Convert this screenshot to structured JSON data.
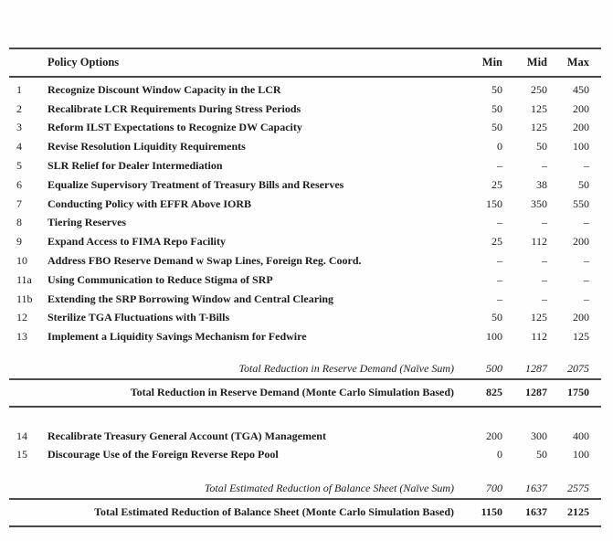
{
  "table": {
    "header": {
      "policy": "Policy Options",
      "min": "Min",
      "mid": "Mid",
      "max": "Max"
    },
    "rows": [
      {
        "id": "1",
        "policy": "Recognize Discount Window Capacity in the LCR",
        "min": "50",
        "mid": "250",
        "max": "450"
      },
      {
        "id": "2",
        "policy": "Recalibrate LCR Requirements During Stress Periods",
        "min": "50",
        "mid": "125",
        "max": "200"
      },
      {
        "id": "3",
        "policy": "Reform ILST Expectations to Recognize DW Capacity",
        "min": "50",
        "mid": "125",
        "max": "200"
      },
      {
        "id": "4",
        "policy": "Revise Resolution Liquidity Requirements",
        "min": "0",
        "mid": "50",
        "max": "100"
      },
      {
        "id": "5",
        "policy": "SLR Relief for Dealer Intermediation",
        "min": "–",
        "mid": "–",
        "max": "–"
      },
      {
        "id": "6",
        "policy": "Equalize Supervisory Treatment of Treasury Bills and Reserves",
        "min": "25",
        "mid": "38",
        "max": "50"
      },
      {
        "id": "7",
        "policy": "Conducting Policy with EFFR Above IORB",
        "min": "150",
        "mid": "350",
        "max": "550"
      },
      {
        "id": "8",
        "policy": "Tiering Reserves",
        "min": "–",
        "mid": "–",
        "max": "–"
      },
      {
        "id": "9",
        "policy": "Expand Access to FIMA Repo Facility",
        "min": "25",
        "mid": "112",
        "max": "200"
      },
      {
        "id": "10",
        "policy": "Address FBO Reserve Demand w Swap Lines, Foreign Reg. Coord.",
        "min": "–",
        "mid": "–",
        "max": "–"
      },
      {
        "id": "11a",
        "policy": "Using Communication to Reduce Stigma of SRP",
        "min": "–",
        "mid": "–",
        "max": "–"
      },
      {
        "id": "11b",
        "policy": "Extending the SRP Borrowing Window and Central Clearing",
        "min": "–",
        "mid": "–",
        "max": "–"
      },
      {
        "id": "12",
        "policy": "Sterilize TGA Fluctuations with T-Bills",
        "min": "50",
        "mid": "125",
        "max": "200"
      },
      {
        "id": "13",
        "policy": "Implement a Liquidity Savings Mechanism for Fedwire",
        "min": "100",
        "mid": "112",
        "max": "125"
      }
    ],
    "reserve_naive": {
      "label": "Total Reduction in Reserve Demand (Naïve Sum)",
      "min": "500",
      "mid": "1287",
      "max": "2075"
    },
    "reserve_mc": {
      "label": "Total Reduction in Reserve Demand (Monte Carlo Simulation Based)",
      "min": "825",
      "mid": "1287",
      "max": "1750"
    },
    "rows2": [
      {
        "id": "14",
        "policy": "Recalibrate Treasury General Account (TGA) Management",
        "min": "200",
        "mid": "300",
        "max": "400"
      },
      {
        "id": "15",
        "policy": "Discourage Use of the Foreign Reverse Repo Pool",
        "min": "0",
        "mid": "50",
        "max": "100"
      }
    ],
    "balance_naive": {
      "label": "Total Estimated Reduction of Balance Sheet (Naïve Sum)",
      "min": "700",
      "mid": "1637",
      "max": "2575"
    },
    "balance_mc": {
      "label": "Total Estimated Reduction of Balance Sheet (Monte Carlo Simulation Based)",
      "min": "1150",
      "mid": "1637",
      "max": "2125"
    }
  }
}
